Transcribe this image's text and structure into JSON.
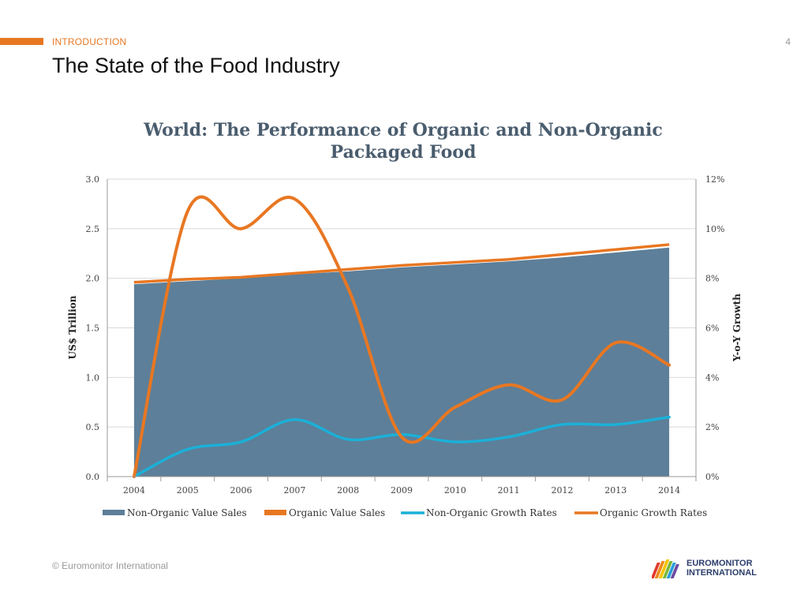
{
  "header": {
    "section": "INTRODUCTION",
    "title": "The State of the Food Industry",
    "page_number": "4"
  },
  "footer": {
    "copyright": "© Euromonitor International",
    "logo_line1": "EUROMONITOR",
    "logo_line2": "INTERNATIONAL"
  },
  "colors": {
    "accent": "#e87722",
    "non_organic_fill": "#5d7f99",
    "organic_line": "#e87722",
    "non_organic_growth": "#1bb0d8"
  },
  "chart_data": {
    "type": "area",
    "title_line1": "World: The Performance of Organic and Non-Organic",
    "title_line2": "Packaged Food",
    "categories": [
      "2004",
      "2005",
      "2006",
      "2007",
      "2008",
      "2009",
      "2010",
      "2011",
      "2012",
      "2013",
      "2014"
    ],
    "ylabel": "US$ Trillion",
    "y2label": "Y-o-Y Growth",
    "ylim": [
      0,
      3.0
    ],
    "y2lim": [
      0,
      12
    ],
    "yticks": [
      "0.0",
      "0.5",
      "1.0",
      "1.5",
      "2.0",
      "2.5",
      "3.0"
    ],
    "y2ticks": [
      "0%",
      "2%",
      "4%",
      "6%",
      "8%",
      "10%",
      "12%"
    ],
    "series": [
      {
        "name": "Non-Organic Value Sales",
        "kind": "area",
        "axis": "left",
        "values": [
          1.94,
          1.97,
          2.0,
          2.04,
          2.07,
          2.11,
          2.14,
          2.17,
          2.21,
          2.26,
          2.31
        ]
      },
      {
        "name": "Organic Value Sales",
        "kind": "line",
        "axis": "left",
        "values": [
          1.96,
          1.99,
          2.01,
          2.05,
          2.09,
          2.13,
          2.16,
          2.19,
          2.24,
          2.29,
          2.34
        ]
      },
      {
        "name": "Non-Organic Growth Rates",
        "kind": "line",
        "axis": "right",
        "values": [
          0.0,
          1.1,
          1.4,
          2.3,
          1.5,
          1.7,
          1.4,
          1.6,
          2.1,
          2.1,
          2.4
        ]
      },
      {
        "name": "Organic Growth Rates",
        "kind": "line",
        "axis": "right",
        "values": [
          0.0,
          10.7,
          10.0,
          11.2,
          7.6,
          1.6,
          2.8,
          3.7,
          3.1,
          5.4,
          4.5
        ]
      }
    ],
    "legend_position": "bottom"
  }
}
